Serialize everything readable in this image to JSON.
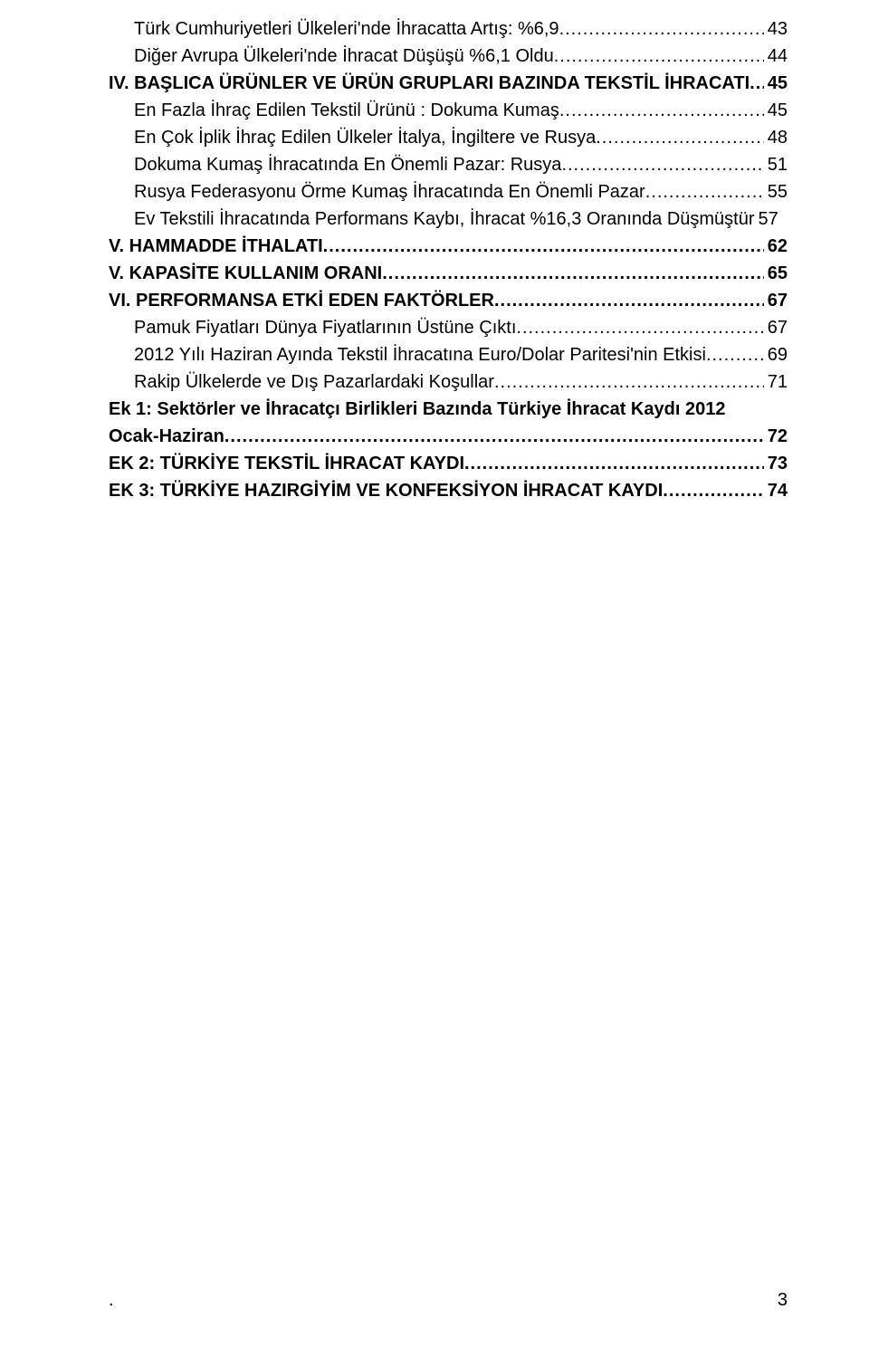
{
  "typography": {
    "font_family": "Arial",
    "font_size_pt": 15,
    "line_height": 1.45,
    "text_color": "#000000",
    "background_color": "#ffffff",
    "dot_leader_color": "#000000"
  },
  "page_number": "3",
  "toc_entries": [
    {
      "indent": true,
      "bold": false,
      "label": "Türk Cumhuriyetleri Ülkeleri'nde İhracatta Artış: %6,9",
      "page": "43"
    },
    {
      "indent": true,
      "bold": false,
      "label": "Diğer Avrupa Ülkeleri'nde İhracat Düşüşü %6,1 Oldu",
      "page": "44"
    },
    {
      "indent": false,
      "bold": true,
      "label": "IV. BAŞLICA ÜRÜNLER VE ÜRÜN GRUPLARI BAZINDA TEKSTİL İHRACATI",
      "page": "45"
    },
    {
      "indent": true,
      "bold": false,
      "label": "En Fazla İhraç Edilen Tekstil Ürünü : Dokuma Kumaş",
      "page": "45"
    },
    {
      "indent": true,
      "bold": false,
      "label": "En Çok İplik İhraç Edilen Ülkeler İtalya, İngiltere ve Rusya",
      "page": "48"
    },
    {
      "indent": true,
      "bold": false,
      "label": "Dokuma Kumaş İhracatında En Önemli Pazar: Rusya",
      "page": "51"
    },
    {
      "indent": true,
      "bold": false,
      "label": "Rusya Federasyonu Örme Kumaş İhracatında En Önemli Pazar",
      "page": "55"
    },
    {
      "indent": true,
      "bold": false,
      "label": "Ev Tekstili İhracatında Performans Kaybı, İhracat %16,3 Oranında Düşmüştür",
      "page": "57",
      "no_dots": true
    },
    {
      "indent": false,
      "bold": true,
      "label": "V. HAMMADDE İTHALATI",
      "page": "62"
    },
    {
      "indent": false,
      "bold": true,
      "label": "V. KAPASİTE KULLANIM ORANI",
      "page": "65"
    },
    {
      "indent": false,
      "bold": true,
      "label": "VI. PERFORMANSA ETKİ EDEN FAKTÖRLER",
      "page": "67"
    },
    {
      "indent": true,
      "bold": false,
      "label": "Pamuk Fiyatları Dünya Fiyatlarının Üstüne Çıktı",
      "page": "67"
    },
    {
      "indent": true,
      "bold": false,
      "label": "2012 Yılı Haziran Ayında Tekstil İhracatına Euro/Dolar Paritesi'nin Etkisi",
      "page": "69"
    },
    {
      "indent": true,
      "bold": false,
      "label": "Rakip Ülkelerde ve Dış Pazarlardaki Koşullar",
      "page": "71"
    },
    {
      "indent": false,
      "bold": true,
      "label_wrap_1": "Ek 1: Sektörler ve İhracatçı Birlikleri Bazında Türkiye İhracat Kaydı 2012",
      "label": "Ocak-Haziran",
      "page": "72",
      "wrapped": true
    },
    {
      "indent": false,
      "bold": true,
      "label": "EK 2: TÜRKİYE TEKSTİL İHRACAT KAYDI",
      "page": "73"
    },
    {
      "indent": false,
      "bold": true,
      "label": "EK 3: TÜRKİYE HAZIRGİYİM VE KONFEKSİYON İHRACAT KAYDI",
      "page": "74"
    }
  ]
}
